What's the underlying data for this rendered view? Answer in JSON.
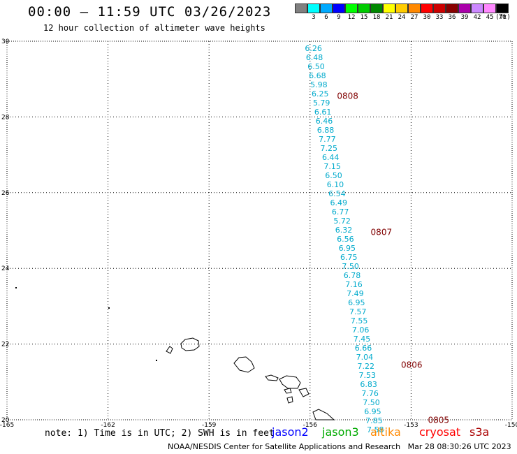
{
  "header": {
    "title": "00:00 — 11:59 UTC 03/26/2023",
    "subtitle": "12 hour collection of altimeter wave heights"
  },
  "legend": {
    "unit": "(ft)",
    "items": [
      {
        "label": "",
        "color": "#808080"
      },
      {
        "label": "3",
        "color": "#00ffff"
      },
      {
        "label": "6",
        "color": "#00aaff"
      },
      {
        "label": "9",
        "color": "#0000ff"
      },
      {
        "label": "12",
        "color": "#00ff00"
      },
      {
        "label": "15",
        "color": "#00cc00"
      },
      {
        "label": "18",
        "color": "#008800"
      },
      {
        "label": "21",
        "color": "#ffff00"
      },
      {
        "label": "24",
        "color": "#ffcc00"
      },
      {
        "label": "27",
        "color": "#ff8800"
      },
      {
        "label": "30",
        "color": "#ff0000"
      },
      {
        "label": "33",
        "color": "#cc0000"
      },
      {
        "label": "36",
        "color": "#880000"
      },
      {
        "label": "39",
        "color": "#aa00aa"
      },
      {
        "label": "42",
        "color": "#cc88ff"
      },
      {
        "label": "45",
        "color": "#ff88ff"
      },
      {
        "label": "70",
        "color": "#000000"
      }
    ]
  },
  "map": {
    "lon_range": [
      -165,
      -150
    ],
    "lat_range": [
      20,
      30
    ],
    "lon_ticks": [
      "-165",
      "-162",
      "-159",
      "-156",
      "-153",
      "-150"
    ],
    "lat_ticks": [
      "30",
      "28",
      "26",
      "24",
      "22",
      "20"
    ],
    "track_color": "#00aacc",
    "time_label_color": "#800000",
    "track": [
      {
        "lon": -155.9,
        "lat": 29.82,
        "v": "6.26"
      },
      {
        "lon": -155.87,
        "lat": 29.58,
        "v": "6.48"
      },
      {
        "lon": -155.82,
        "lat": 29.34,
        "v": "6.50"
      },
      {
        "lon": -155.78,
        "lat": 29.1,
        "v": "6.68"
      },
      {
        "lon": -155.74,
        "lat": 28.86,
        "v": "5.98"
      },
      {
        "lon": -155.7,
        "lat": 28.62,
        "v": "6.25"
      },
      {
        "lon": -155.66,
        "lat": 28.38,
        "v": "5.79"
      },
      {
        "lon": -155.62,
        "lat": 28.14,
        "v": "6.61"
      },
      {
        "lon": -155.58,
        "lat": 27.9,
        "v": "6.46"
      },
      {
        "lon": -155.54,
        "lat": 27.66,
        "v": "6.88"
      },
      {
        "lon": -155.49,
        "lat": 27.42,
        "v": "7.77"
      },
      {
        "lon": -155.44,
        "lat": 27.18,
        "v": "7.25"
      },
      {
        "lon": -155.39,
        "lat": 26.94,
        "v": "6.44"
      },
      {
        "lon": -155.34,
        "lat": 26.7,
        "v": "7.15"
      },
      {
        "lon": -155.3,
        "lat": 26.46,
        "v": "6.50"
      },
      {
        "lon": -155.25,
        "lat": 26.22,
        "v": "6.10"
      },
      {
        "lon": -155.2,
        "lat": 25.98,
        "v": "6.54"
      },
      {
        "lon": -155.15,
        "lat": 25.74,
        "v": "6.49"
      },
      {
        "lon": -155.1,
        "lat": 25.5,
        "v": "6.77"
      },
      {
        "lon": -155.05,
        "lat": 25.26,
        "v": "5.72"
      },
      {
        "lon": -155.0,
        "lat": 25.02,
        "v": "6.32"
      },
      {
        "lon": -154.95,
        "lat": 24.78,
        "v": "6.56"
      },
      {
        "lon": -154.9,
        "lat": 24.54,
        "v": "6.95"
      },
      {
        "lon": -154.85,
        "lat": 24.3,
        "v": "6.75"
      },
      {
        "lon": -154.8,
        "lat": 24.06,
        "v": "7.50"
      },
      {
        "lon": -154.75,
        "lat": 23.82,
        "v": "6.78"
      },
      {
        "lon": -154.7,
        "lat": 23.58,
        "v": "7.16"
      },
      {
        "lon": -154.66,
        "lat": 23.34,
        "v": "7.49"
      },
      {
        "lon": -154.62,
        "lat": 23.1,
        "v": "6.95"
      },
      {
        "lon": -154.58,
        "lat": 22.86,
        "v": "7.57"
      },
      {
        "lon": -154.54,
        "lat": 22.62,
        "v": "7.55"
      },
      {
        "lon": -154.5,
        "lat": 22.38,
        "v": "7.06"
      },
      {
        "lon": -154.46,
        "lat": 22.14,
        "v": "7.45"
      },
      {
        "lon": -154.42,
        "lat": 21.9,
        "v": "6.66"
      },
      {
        "lon": -154.38,
        "lat": 21.66,
        "v": "7.04"
      },
      {
        "lon": -154.34,
        "lat": 21.42,
        "v": "7.22"
      },
      {
        "lon": -154.3,
        "lat": 21.18,
        "v": "7.53"
      },
      {
        "lon": -154.26,
        "lat": 20.94,
        "v": "6.83"
      },
      {
        "lon": -154.22,
        "lat": 20.7,
        "v": "7.76"
      },
      {
        "lon": -154.18,
        "lat": 20.46,
        "v": "7.50"
      },
      {
        "lon": -154.14,
        "lat": 20.22,
        "v": "6.95"
      },
      {
        "lon": -154.1,
        "lat": 19.98,
        "v": "7.85"
      },
      {
        "lon": -154.06,
        "lat": 19.74,
        "v": "7.58"
      }
    ],
    "times": [
      {
        "lon": -155.2,
        "lat": 28.55,
        "t": "0808"
      },
      {
        "lon": -154.2,
        "lat": 24.95,
        "t": "0807"
      },
      {
        "lon": -153.3,
        "lat": 21.45,
        "t": "0806"
      },
      {
        "lon": -152.5,
        "lat": 19.99,
        "t": "0805"
      }
    ]
  },
  "footer": {
    "note": "note: 1) Time is in UTC; 2) SWH is in feet",
    "credits": "NOAA/NESDIS Center for Satellite Applications and Research",
    "timestamp": "Mar 28 08:30:26 UTC 2023",
    "satellites": [
      {
        "name": "jason2",
        "color": "#0000ff"
      },
      {
        "name": "jason3",
        "color": "#00aa00"
      },
      {
        "name": "altika",
        "color": "#ff8800"
      },
      {
        "name": "cryosat",
        "color": "#ff0000"
      },
      {
        "name": "s3a",
        "color": "#aa0000"
      }
    ]
  }
}
